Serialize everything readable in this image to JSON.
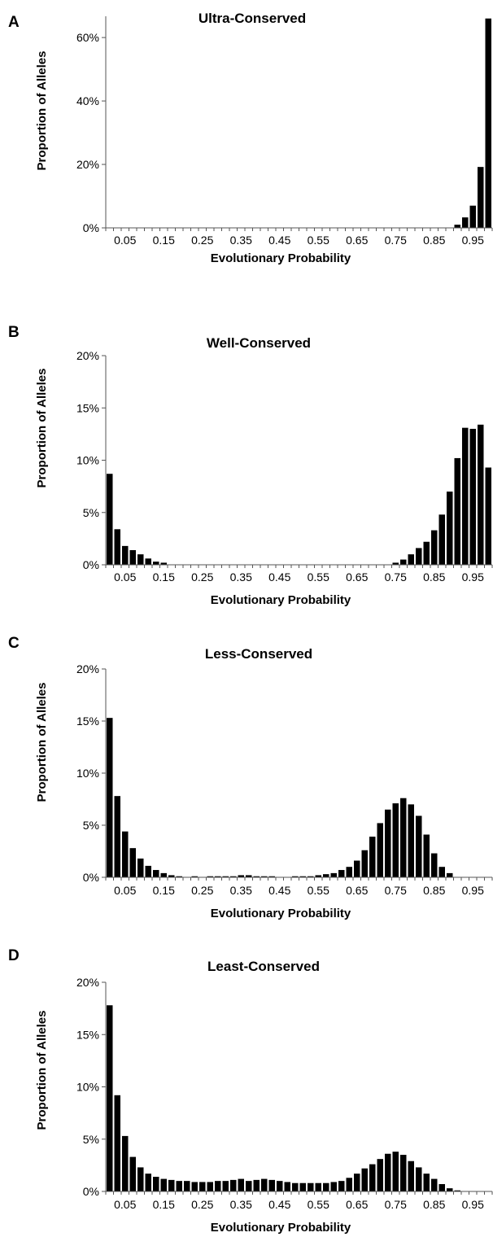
{
  "chart_data": [
    {
      "panel": "A",
      "type": "bar",
      "title": "Ultra-Conserved",
      "xlabel": "Evolutionary Probability",
      "ylabel": "Proportion of Alleles",
      "ylim": [
        0,
        66.7
      ],
      "yticks": [
        "0%",
        "20%",
        "40%",
        "60%"
      ],
      "ytick_values": [
        0,
        20,
        40,
        60
      ],
      "xticks": [
        "0.05",
        "0.15",
        "0.25",
        "0.35",
        "0.45",
        "0.55",
        "0.65",
        "0.75",
        "0.85",
        "0.95"
      ],
      "bin_width": 0.02,
      "x": [
        0.01,
        0.03,
        0.05,
        0.07,
        0.09,
        0.11,
        0.13,
        0.15,
        0.17,
        0.19,
        0.21,
        0.23,
        0.25,
        0.27,
        0.29,
        0.31,
        0.33,
        0.35,
        0.37,
        0.39,
        0.41,
        0.43,
        0.45,
        0.47,
        0.49,
        0.51,
        0.53,
        0.55,
        0.57,
        0.59,
        0.61,
        0.63,
        0.65,
        0.67,
        0.69,
        0.71,
        0.73,
        0.75,
        0.77,
        0.79,
        0.81,
        0.83,
        0.85,
        0.87,
        0.89,
        0.91,
        0.93,
        0.95,
        0.97,
        0.99
      ],
      "values": [
        0,
        0,
        0,
        0,
        0,
        0,
        0,
        0,
        0,
        0,
        0,
        0,
        0,
        0,
        0,
        0,
        0,
        0,
        0,
        0,
        0,
        0,
        0,
        0,
        0,
        0,
        0,
        0,
        0,
        0,
        0,
        0,
        0,
        0,
        0,
        0,
        0,
        0,
        0,
        0,
        0,
        0,
        0,
        0,
        0,
        1.0,
        3.3,
        7.0,
        19.2,
        66.0
      ]
    },
    {
      "panel": "B",
      "type": "bar",
      "title": "Well-Conserved",
      "xlabel": "Evolutionary Probability",
      "ylabel": "Proportion of Alleles",
      "ylim": [
        0,
        20
      ],
      "yticks": [
        "0%",
        "5%",
        "10%",
        "15%",
        "20%"
      ],
      "ytick_values": [
        0,
        5,
        10,
        15,
        20
      ],
      "xticks": [
        "0.05",
        "0.15",
        "0.25",
        "0.35",
        "0.45",
        "0.55",
        "0.65",
        "0.75",
        "0.85",
        "0.95"
      ],
      "bin_width": 0.02,
      "x": [
        0.01,
        0.03,
        0.05,
        0.07,
        0.09,
        0.11,
        0.13,
        0.15,
        0.17,
        0.19,
        0.21,
        0.23,
        0.25,
        0.27,
        0.29,
        0.31,
        0.33,
        0.35,
        0.37,
        0.39,
        0.41,
        0.43,
        0.45,
        0.47,
        0.49,
        0.51,
        0.53,
        0.55,
        0.57,
        0.59,
        0.61,
        0.63,
        0.65,
        0.67,
        0.69,
        0.71,
        0.73,
        0.75,
        0.77,
        0.79,
        0.81,
        0.83,
        0.85,
        0.87,
        0.89,
        0.91,
        0.93,
        0.95,
        0.97,
        0.99
      ],
      "values": [
        8.7,
        3.4,
        1.8,
        1.4,
        1.0,
        0.6,
        0.3,
        0.2,
        0,
        0,
        0,
        0,
        0,
        0,
        0,
        0,
        0,
        0,
        0,
        0,
        0,
        0,
        0,
        0,
        0,
        0,
        0,
        0,
        0,
        0,
        0,
        0,
        0,
        0,
        0,
        0,
        0,
        0.2,
        0.5,
        1.0,
        1.6,
        2.2,
        3.3,
        4.8,
        7.0,
        10.2,
        13.1,
        13.0,
        13.4,
        9.3
      ]
    },
    {
      "panel": "C",
      "type": "bar",
      "title": "Less-Conserved",
      "xlabel": "Evolutionary Probability",
      "ylabel": "Proportion of Alleles",
      "ylim": [
        0,
        20
      ],
      "yticks": [
        "0%",
        "5%",
        "10%",
        "15%",
        "20%"
      ],
      "ytick_values": [
        0,
        5,
        10,
        15,
        20
      ],
      "xticks": [
        "0.05",
        "0.15",
        "0.25",
        "0.35",
        "0.45",
        "0.55",
        "0.65",
        "0.75",
        "0.85",
        "0.95"
      ],
      "bin_width": 0.02,
      "x": [
        0.01,
        0.03,
        0.05,
        0.07,
        0.09,
        0.11,
        0.13,
        0.15,
        0.17,
        0.19,
        0.21,
        0.23,
        0.25,
        0.27,
        0.29,
        0.31,
        0.33,
        0.35,
        0.37,
        0.39,
        0.41,
        0.43,
        0.45,
        0.47,
        0.49,
        0.51,
        0.53,
        0.55,
        0.57,
        0.59,
        0.61,
        0.63,
        0.65,
        0.67,
        0.69,
        0.71,
        0.73,
        0.75,
        0.77,
        0.79,
        0.81,
        0.83,
        0.85,
        0.87,
        0.89,
        0.91,
        0.93,
        0.95,
        0.97,
        0.99
      ],
      "values": [
        15.3,
        7.8,
        4.4,
        2.8,
        1.8,
        1.1,
        0.7,
        0.4,
        0.2,
        0.1,
        0,
        0.1,
        0,
        0.1,
        0.1,
        0.1,
        0.1,
        0.2,
        0.2,
        0.1,
        0.1,
        0.1,
        0,
        0,
        0.1,
        0.1,
        0.1,
        0.2,
        0.3,
        0.4,
        0.7,
        1.0,
        1.6,
        2.6,
        3.9,
        5.2,
        6.5,
        7.1,
        7.6,
        7.0,
        5.9,
        4.1,
        2.3,
        1.0,
        0.4,
        0,
        0,
        0,
        0,
        0
      ]
    },
    {
      "panel": "D",
      "type": "bar",
      "title": "Least-Conserved",
      "xlabel": "Evolutionary Probability",
      "ylabel": "Proportion of Alleles",
      "ylim": [
        0,
        20
      ],
      "yticks": [
        "0%",
        "5%",
        "10%",
        "15%",
        "20%"
      ],
      "ytick_values": [
        0,
        5,
        10,
        15,
        20
      ],
      "xticks": [
        "0.05",
        "0.15",
        "0.25",
        "0.35",
        "0.45",
        "0.55",
        "0.65",
        "0.75",
        "0.85",
        "0.95"
      ],
      "bin_width": 0.02,
      "x": [
        0.01,
        0.03,
        0.05,
        0.07,
        0.09,
        0.11,
        0.13,
        0.15,
        0.17,
        0.19,
        0.21,
        0.23,
        0.25,
        0.27,
        0.29,
        0.31,
        0.33,
        0.35,
        0.37,
        0.39,
        0.41,
        0.43,
        0.45,
        0.47,
        0.49,
        0.51,
        0.53,
        0.55,
        0.57,
        0.59,
        0.61,
        0.63,
        0.65,
        0.67,
        0.69,
        0.71,
        0.73,
        0.75,
        0.77,
        0.79,
        0.81,
        0.83,
        0.85,
        0.87,
        0.89,
        0.91,
        0.93,
        0.95,
        0.97,
        0.99
      ],
      "values": [
        17.8,
        9.2,
        5.3,
        3.3,
        2.3,
        1.7,
        1.4,
        1.2,
        1.1,
        1.0,
        1.0,
        0.9,
        0.9,
        0.9,
        1.0,
        1.0,
        1.1,
        1.2,
        1.0,
        1.1,
        1.2,
        1.1,
        1.0,
        0.9,
        0.8,
        0.8,
        0.8,
        0.8,
        0.8,
        0.9,
        1.0,
        1.3,
        1.7,
        2.2,
        2.6,
        3.1,
        3.6,
        3.8,
        3.5,
        2.9,
        2.3,
        1.7,
        1.2,
        0.7,
        0.3,
        0.1,
        0,
        0,
        0,
        0
      ]
    }
  ]
}
